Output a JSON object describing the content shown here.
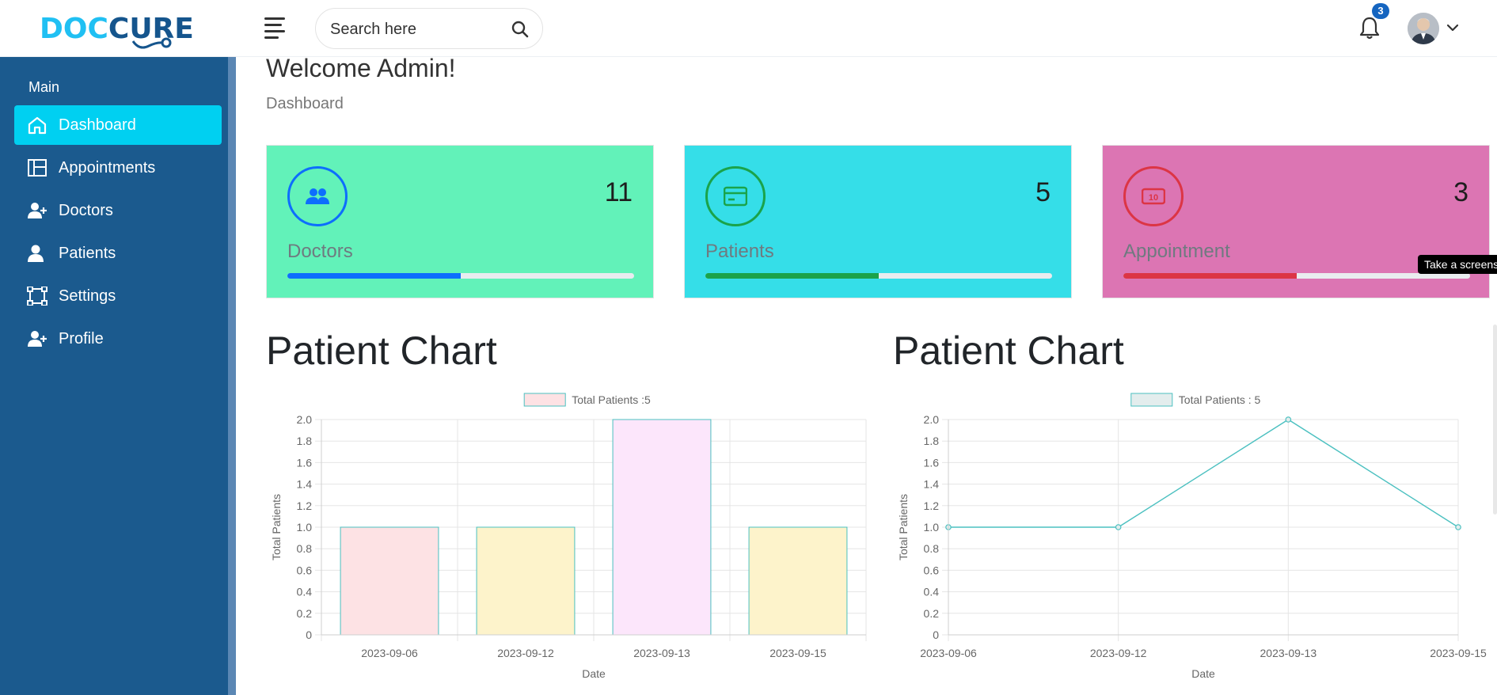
{
  "brand": {
    "logo_text": "DOCCURE"
  },
  "header": {
    "search_placeholder": "Search here",
    "notification_count": "3"
  },
  "sidebar": {
    "section_title": "Main",
    "items": [
      {
        "label": "Dashboard",
        "icon": "home-icon",
        "active": true
      },
      {
        "label": "Appointments",
        "icon": "layout-icon",
        "active": false
      },
      {
        "label": "Doctors",
        "icon": "user-plus-icon",
        "active": false
      },
      {
        "label": "Patients",
        "icon": "user-icon",
        "active": false
      },
      {
        "label": "Settings",
        "icon": "bounding-box-icon",
        "active": false
      },
      {
        "label": "Profile",
        "icon": "user-plus-icon",
        "active": false
      }
    ]
  },
  "page": {
    "title": "Welcome Admin!",
    "breadcrumb": "Dashboard"
  },
  "stats": [
    {
      "label": "Doctors",
      "count": "11",
      "progress": 0.5,
      "bg": "#62f2b9",
      "accent": "#0d6efd",
      "icon": "users-icon"
    },
    {
      "label": "Patients",
      "count": "5",
      "progress": 0.5,
      "bg": "#35dee8",
      "accent": "#1aa34a",
      "icon": "credit-card-icon"
    },
    {
      "label": "Appointment",
      "count": "3",
      "progress": 0.5,
      "bg": "#dc75b3",
      "accent": "#dc3545",
      "icon": "money-icon"
    }
  ],
  "tooltip": "Take a screens",
  "chart_data": [
    {
      "type": "bar",
      "title": "Patient Chart",
      "legend": "Total Patients :5",
      "categories": [
        "2023-09-06",
        "2023-09-12",
        "2023-09-13",
        "2023-09-15"
      ],
      "values": [
        1,
        1,
        2,
        1
      ],
      "colors": [
        "#fde2e4",
        "#fdf3cb",
        "#fce6fb",
        "#fdf3cb"
      ],
      "border_color": "#4bc0c0",
      "xlabel": "Date",
      "ylabel": "Total Patients",
      "ylim": [
        0,
        2.0
      ],
      "yticks": [
        "0",
        "0.2",
        "0.4",
        "0.6",
        "0.8",
        "1.0",
        "1.2",
        "1.4",
        "1.6",
        "1.8",
        "2.0"
      ],
      "legend_color": "#fde2e4"
    },
    {
      "type": "line",
      "title": "Patient Chart",
      "legend": "Total Patients : 5",
      "categories": [
        "2023-09-06",
        "2023-09-12",
        "2023-09-13",
        "2023-09-15"
      ],
      "values": [
        1,
        1,
        2,
        1
      ],
      "line_color": "#4bc0c0",
      "xlabel": "Date",
      "ylabel": "Total Patients",
      "ylim": [
        0,
        2.0
      ],
      "yticks": [
        "0",
        "0.2",
        "0.4",
        "0.6",
        "0.8",
        "1.0",
        "1.2",
        "1.4",
        "1.6",
        "1.8",
        "2.0"
      ],
      "legend_color": "#e3eded"
    }
  ]
}
